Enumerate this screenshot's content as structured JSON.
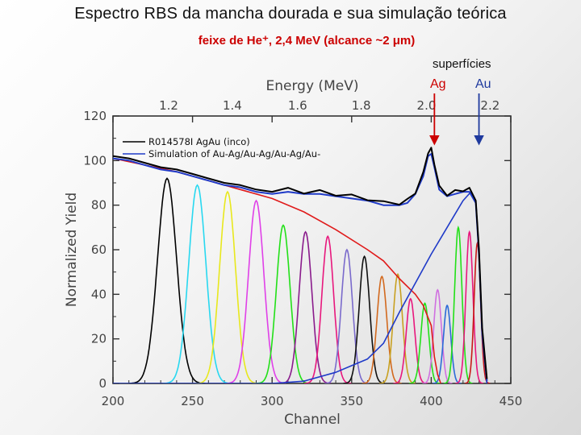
{
  "slide": {
    "title": "Espectro RBS da mancha dourada e sua simulação teórica",
    "subtitle": "feixe de He⁺, 2,4 MeV  (alcance ~2 μm)",
    "surfaces_label": "superfícies",
    "surface_ag": "Ag",
    "surface_au": "Au"
  },
  "chart_data": {
    "type": "line",
    "xlabel": "Channel",
    "ylabel": "Normalized  Yield",
    "top_axis_label": "Energy   (MeV)",
    "xlim": [
      200,
      450
    ],
    "ylim": [
      0,
      120
    ],
    "x_ticks": [
      200,
      250,
      300,
      350,
      400,
      450
    ],
    "y_ticks": [
      0,
      20,
      40,
      60,
      80,
      100,
      120
    ],
    "top_axis": {
      "ticks": [
        {
          "label": "1.2",
          "channel": 235
        },
        {
          "label": "1.4",
          "channel": 275
        },
        {
          "label": "1.6",
          "channel": 316
        },
        {
          "label": "1.8",
          "channel": 356
        },
        {
          "label": "2.0",
          "channel": 397
        },
        {
          "label": "2.2",
          "channel": 437
        }
      ]
    },
    "legend": {
      "position": "top-left",
      "entries": [
        {
          "label": "R014578I  AgAu  (inco)",
          "color": "#000000"
        },
        {
          "label": "Simulation  of  Au-Ag/Au-Ag/Au-Ag/Au-",
          "color": "#1f3ac8"
        }
      ]
    },
    "surface_markers": [
      {
        "name": "Ag",
        "channel": 402,
        "color": "#cc0000"
      },
      {
        "name": "Au",
        "channel": 430,
        "color": "#1f3a9e"
      }
    ],
    "series": [
      {
        "name": "R014578I AgAu (inco)",
        "color": "#000000",
        "width": 2,
        "x": [
          200,
          210,
          220,
          230,
          240,
          250,
          260,
          270,
          280,
          290,
          300,
          310,
          320,
          330,
          340,
          350,
          360,
          370,
          380,
          385,
          390,
          395,
          398,
          400,
          402,
          405,
          410,
          415,
          420,
          424,
          428,
          430,
          432,
          435
        ],
        "y": [
          102,
          101,
          99,
          97,
          96,
          94,
          92,
          90,
          89,
          87,
          86,
          87,
          86,
          86,
          85,
          84,
          83,
          81,
          81,
          82,
          86,
          94,
          104,
          105,
          99,
          88,
          85,
          86,
          87,
          87,
          82,
          60,
          25,
          2
        ]
      },
      {
        "name": "Simulation of Au-Ag/Au-Ag/Au-Ag/Au-",
        "color": "#1f3ac8",
        "width": 2,
        "x": [
          200,
          210,
          220,
          230,
          240,
          250,
          260,
          270,
          280,
          290,
          300,
          310,
          320,
          330,
          340,
          350,
          360,
          370,
          380,
          385,
          390,
          395,
          398,
          400,
          402,
          405,
          410,
          415,
          420,
          424,
          428,
          430,
          432,
          435
        ],
        "y": [
          101,
          100,
          98,
          96,
          95,
          93,
          91,
          89,
          88,
          86,
          85,
          86,
          85,
          85,
          84,
          83,
          82,
          80,
          80,
          81,
          85,
          93,
          102,
          103,
          97,
          87,
          84,
          85,
          86,
          86,
          81,
          58,
          23,
          1
        ]
      },
      {
        "name": "Ag partial",
        "color": "#e01a1a",
        "width": 1.6,
        "x": [
          200,
          220,
          240,
          260,
          280,
          300,
          320,
          340,
          360,
          370,
          380,
          390,
          395,
          400,
          402,
          404,
          406
        ],
        "y": [
          101,
          98,
          95,
          91,
          87,
          83,
          77,
          69,
          60,
          55,
          47,
          40,
          35,
          26,
          12,
          4,
          0
        ]
      },
      {
        "name": "Au partial",
        "color": "#1f3ac8",
        "width": 1.6,
        "x": [
          200,
          300,
          320,
          340,
          350,
          360,
          370,
          380,
          390,
          400,
          410,
          420,
          425,
          428,
          430,
          432,
          435
        ],
        "y": [
          0,
          0,
          1,
          5,
          8,
          11,
          18,
          32,
          45,
          58,
          70,
          82,
          86,
          82,
          58,
          22,
          0
        ]
      }
    ],
    "layer_peaks": [
      {
        "center": 234,
        "height": 92,
        "sigma": 6.0,
        "color": "#000000"
      },
      {
        "center": 253,
        "height": 89,
        "sigma": 5.4,
        "color": "#28d8f0"
      },
      {
        "center": 272,
        "height": 86,
        "sigma": 5.0,
        "color": "#e8e81c"
      },
      {
        "center": 290,
        "height": 82,
        "sigma": 4.8,
        "color": "#e040e8"
      },
      {
        "center": 307,
        "height": 71,
        "sigma": 4.3,
        "color": "#22e018"
      },
      {
        "center": 321,
        "height": 68,
        "sigma": 4.0,
        "color": "#8a1b8c"
      },
      {
        "center": 335,
        "height": 66,
        "sigma": 3.7,
        "color": "#e8177d"
      },
      {
        "center": 347,
        "height": 60,
        "sigma": 3.5,
        "color": "#7a6acc"
      },
      {
        "center": 358,
        "height": 57,
        "sigma": 3.3,
        "color": "#101010"
      },
      {
        "center": 369,
        "height": 48,
        "sigma": 3.1,
        "color": "#d2691e"
      },
      {
        "center": 379,
        "height": 49,
        "sigma": 2.9,
        "color": "#c8a020"
      },
      {
        "center": 387,
        "height": 38,
        "sigma": 2.7,
        "color": "#e8177d"
      },
      {
        "center": 396,
        "height": 36,
        "sigma": 2.5,
        "color": "#22e018"
      },
      {
        "center": 404,
        "height": 42,
        "sigma": 2.4,
        "color": "#d070e0"
      },
      {
        "center": 410,
        "height": 35,
        "sigma": 2.3,
        "color": "#2a6ad8"
      },
      {
        "center": 417,
        "height": 70,
        "sigma": 2.3,
        "color": "#22e018"
      },
      {
        "center": 424,
        "height": 68,
        "sigma": 2.2,
        "color": "#e8177d"
      },
      {
        "center": 429,
        "height": 63,
        "sigma": 2.0,
        "color": "#c81818"
      }
    ]
  }
}
